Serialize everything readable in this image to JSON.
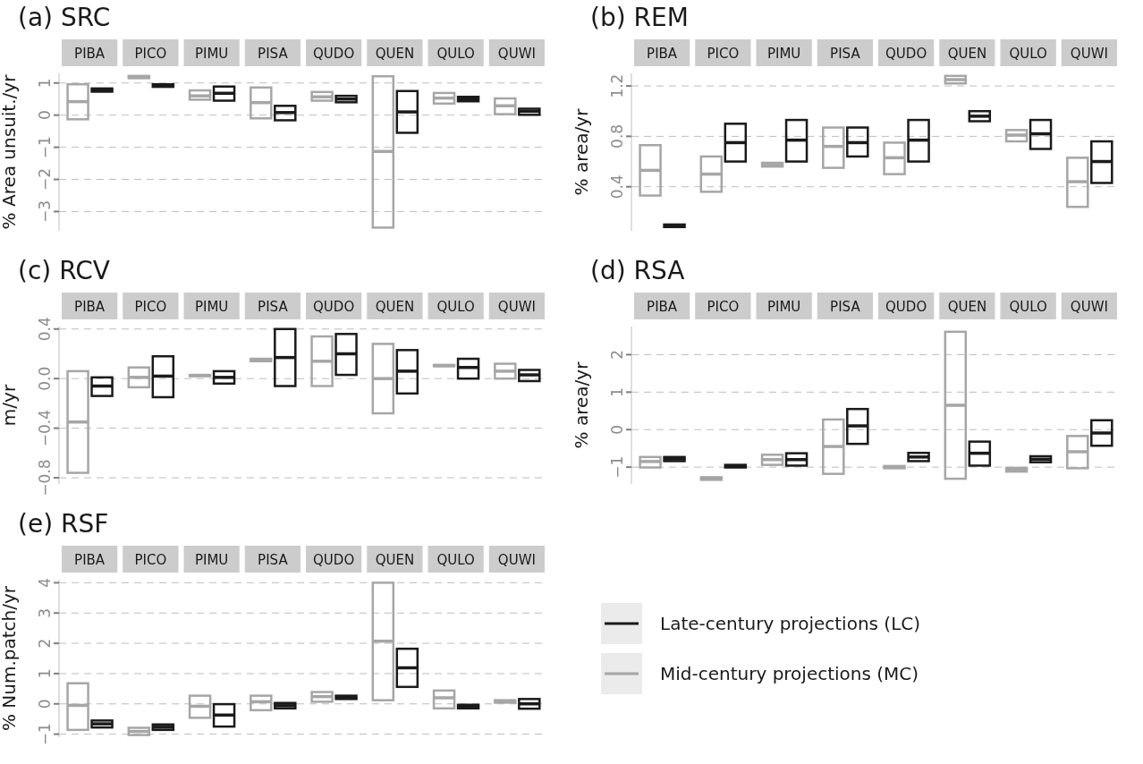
{
  "chart_data": [
    {
      "type": "box",
      "title": "(a) SRC",
      "ylabel": "% Area unsuit./yr",
      "categories": [
        "PIBA",
        "PICO",
        "PIMU",
        "PISA",
        "QUDO",
        "QUEN",
        "QULO",
        "QUWI"
      ],
      "ylim": [
        -3.6,
        1.3
      ],
      "yticks": [
        -3,
        -2,
        -1,
        0,
        1
      ],
      "grid": "y",
      "series": [
        {
          "color": "#a6a6a6",
          "boxes": [
            {
              "low": -0.13,
              "q1": -0.13,
              "median": 0.42,
              "q3": 0.96,
              "high": 0.96
            },
            {
              "low": 1.15,
              "q1": 1.15,
              "median": 1.18,
              "q3": 1.22,
              "high": 1.22
            },
            {
              "low": 0.48,
              "q1": 0.48,
              "median": 0.6,
              "q3": 0.77,
              "high": 0.77
            },
            {
              "low": -0.1,
              "q1": -0.1,
              "median": 0.39,
              "q3": 0.86,
              "high": 0.86
            },
            {
              "low": 0.45,
              "q1": 0.45,
              "median": 0.57,
              "q3": 0.72,
              "high": 0.72
            },
            {
              "low": -3.5,
              "q1": -3.5,
              "median": -1.13,
              "q3": 1.21,
              "high": 1.21
            },
            {
              "low": 0.36,
              "q1": 0.36,
              "median": 0.53,
              "q3": 0.69,
              "high": 0.69
            },
            {
              "low": 0.03,
              "q1": 0.03,
              "median": 0.29,
              "q3": 0.52,
              "high": 0.52
            }
          ]
        },
        {
          "color": "#1a1a1a",
          "boxes": [
            {
              "low": 0.73,
              "q1": 0.73,
              "median": 0.78,
              "q3": 0.83,
              "high": 0.83
            },
            {
              "low": 0.88,
              "q1": 0.88,
              "median": 0.92,
              "q3": 0.96,
              "high": 0.96
            },
            {
              "low": 0.45,
              "q1": 0.45,
              "median": 0.68,
              "q3": 0.89,
              "high": 0.89
            },
            {
              "low": -0.16,
              "q1": -0.16,
              "median": 0.08,
              "q3": 0.29,
              "high": 0.29
            },
            {
              "low": 0.4,
              "q1": 0.4,
              "median": 0.5,
              "q3": 0.6,
              "high": 0.6
            },
            {
              "low": -0.55,
              "q1": -0.55,
              "median": 0.1,
              "q3": 0.75,
              "high": 0.75
            },
            {
              "low": 0.43,
              "q1": 0.43,
              "median": 0.5,
              "q3": 0.57,
              "high": 0.57
            },
            {
              "low": 0.01,
              "q1": 0.01,
              "median": 0.12,
              "q3": 0.2,
              "high": 0.2
            }
          ]
        }
      ]
    },
    {
      "type": "box",
      "title": "(b) REM",
      "ylabel": "% area/yr",
      "categories": [
        "PIBA",
        "PICO",
        "PIMU",
        "PISA",
        "QUDO",
        "QUEN",
        "QULO",
        "QUWI"
      ],
      "ylim": [
        0.05,
        1.3
      ],
      "yticks": [
        0.4,
        0.8,
        1.2
      ],
      "grid": "y",
      "series": [
        {
          "color": "#a6a6a6",
          "boxes": [
            {
              "low": 0.33,
              "q1": 0.33,
              "median": 0.53,
              "q3": 0.73,
              "high": 0.73
            },
            {
              "low": 0.36,
              "q1": 0.36,
              "median": 0.5,
              "q3": 0.64,
              "high": 0.64
            },
            {
              "low": 0.56,
              "q1": 0.56,
              "median": 0.57,
              "q3": 0.59,
              "high": 0.59
            },
            {
              "low": 0.55,
              "q1": 0.55,
              "median": 0.72,
              "q3": 0.87,
              "high": 0.87
            },
            {
              "low": 0.5,
              "q1": 0.5,
              "median": 0.63,
              "q3": 0.75,
              "high": 0.75
            },
            {
              "low": 1.22,
              "q1": 1.22,
              "median": 1.25,
              "q3": 1.28,
              "high": 1.28
            },
            {
              "low": 0.76,
              "q1": 0.76,
              "median": 0.81,
              "q3": 0.85,
              "high": 0.85
            },
            {
              "low": 0.24,
              "q1": 0.24,
              "median": 0.44,
              "q3": 0.63,
              "high": 0.63
            }
          ]
        },
        {
          "color": "#1a1a1a",
          "boxes": [
            {
              "low": 0.08,
              "q1": 0.08,
              "median": 0.09,
              "q3": 0.1,
              "high": 0.1
            },
            {
              "low": 0.6,
              "q1": 0.6,
              "median": 0.75,
              "q3": 0.9,
              "high": 0.9
            },
            {
              "low": 0.6,
              "q1": 0.6,
              "median": 0.77,
              "q3": 0.93,
              "high": 0.93
            },
            {
              "low": 0.64,
              "q1": 0.64,
              "median": 0.75,
              "q3": 0.87,
              "high": 0.87
            },
            {
              "low": 0.6,
              "q1": 0.6,
              "median": 0.77,
              "q3": 0.93,
              "high": 0.93
            },
            {
              "low": 0.92,
              "q1": 0.92,
              "median": 0.96,
              "q3": 1.0,
              "high": 1.0
            },
            {
              "low": 0.7,
              "q1": 0.7,
              "median": 0.82,
              "q3": 0.93,
              "high": 0.93
            },
            {
              "low": 0.43,
              "q1": 0.43,
              "median": 0.6,
              "q3": 0.76,
              "high": 0.76
            }
          ]
        }
      ]
    },
    {
      "type": "box",
      "title": "(c) RCV",
      "ylabel": "m/yr",
      "categories": [
        "PIBA",
        "PICO",
        "PIMU",
        "PISA",
        "QUDO",
        "QUEN",
        "QULO",
        "QUWI"
      ],
      "ylim": [
        -0.85,
        0.42
      ],
      "yticks": [
        {
          "value": -0.8,
          "label": "−0.8"
        },
        {
          "value": -0.4,
          "label": "−0.4"
        },
        {
          "value": 0,
          "label": "0.0"
        },
        {
          "value": 0.4,
          "label": "0.4"
        }
      ],
      "grid": "y",
      "series": [
        {
          "color": "#a6a6a6",
          "boxes": [
            {
              "low": -0.76,
              "q1": -0.76,
              "median": -0.35,
              "q3": 0.06,
              "high": 0.06
            },
            {
              "low": -0.07,
              "q1": -0.07,
              "median": 0.01,
              "q3": 0.09,
              "high": 0.09
            },
            {
              "low": 0.02,
              "q1": 0.02,
              "median": 0.025,
              "q3": 0.03,
              "high": 0.03
            },
            {
              "low": 0.14,
              "q1": 0.14,
              "median": 0.15,
              "q3": 0.16,
              "high": 0.16
            },
            {
              "low": -0.06,
              "q1": -0.06,
              "median": 0.14,
              "q3": 0.34,
              "high": 0.34
            },
            {
              "low": -0.28,
              "q1": -0.28,
              "median": 0.0,
              "q3": 0.28,
              "high": 0.28
            },
            {
              "low": 0.1,
              "q1": 0.1,
              "median": 0.105,
              "q3": 0.11,
              "high": 0.11
            },
            {
              "low": 0.0,
              "q1": 0.0,
              "median": 0.06,
              "q3": 0.12,
              "high": 0.12
            }
          ]
        },
        {
          "color": "#1a1a1a",
          "boxes": [
            {
              "low": -0.14,
              "q1": -0.14,
              "median": -0.06,
              "q3": 0.01,
              "high": 0.01
            },
            {
              "low": -0.15,
              "q1": -0.15,
              "median": 0.02,
              "q3": 0.18,
              "high": 0.18
            },
            {
              "low": -0.04,
              "q1": -0.04,
              "median": 0.01,
              "q3": 0.06,
              "high": 0.06
            },
            {
              "low": -0.06,
              "q1": -0.06,
              "median": 0.17,
              "q3": 0.4,
              "high": 0.4
            },
            {
              "low": 0.03,
              "q1": 0.03,
              "median": 0.2,
              "q3": 0.36,
              "high": 0.36
            },
            {
              "low": -0.12,
              "q1": -0.12,
              "median": 0.06,
              "q3": 0.23,
              "high": 0.23
            },
            {
              "low": 0.0,
              "q1": 0.0,
              "median": 0.09,
              "q3": 0.16,
              "high": 0.16
            },
            {
              "low": -0.02,
              "q1": -0.02,
              "median": 0.03,
              "q3": 0.07,
              "high": 0.07
            }
          ]
        }
      ]
    },
    {
      "type": "box",
      "title": "(d) RSA",
      "ylabel": "% area/yr",
      "categories": [
        "PIBA",
        "PICO",
        "PIMU",
        "PISA",
        "QUDO",
        "QUEN",
        "QULO",
        "QUWI"
      ],
      "ylim": [
        -1.45,
        2.75
      ],
      "yticks": [
        -1,
        0,
        1,
        2
      ],
      "grid": "y",
      "series": [
        {
          "color": "#a6a6a6",
          "boxes": [
            {
              "low": -1.01,
              "q1": -1.01,
              "median": -0.85,
              "q3": -0.73,
              "high": -0.73
            },
            {
              "low": -1.34,
              "q1": -1.34,
              "median": -1.3,
              "q3": -1.27,
              "high": -1.27
            },
            {
              "low": -0.94,
              "q1": -0.94,
              "median": -0.8,
              "q3": -0.67,
              "high": -0.67
            },
            {
              "low": -1.18,
              "q1": -1.18,
              "median": -0.45,
              "q3": 0.27,
              "high": 0.27
            },
            {
              "low": -1.03,
              "q1": -1.03,
              "median": -1.0,
              "q3": -0.97,
              "high": -0.97
            },
            {
              "low": -1.31,
              "q1": -1.31,
              "median": 0.65,
              "q3": 2.61,
              "high": 2.61
            },
            {
              "low": -1.12,
              "q1": -1.12,
              "median": -1.07,
              "q3": -1.02,
              "high": -1.02
            },
            {
              "low": -1.03,
              "q1": -1.03,
              "median": -0.59,
              "q3": -0.17,
              "high": -0.17
            }
          ]
        },
        {
          "color": "#1a1a1a",
          "boxes": [
            {
              "low": -0.84,
              "q1": -0.84,
              "median": -0.78,
              "q3": -0.73,
              "high": -0.73
            },
            {
              "low": -1.01,
              "q1": -1.01,
              "median": -0.97,
              "q3": -0.94,
              "high": -0.94
            },
            {
              "low": -0.96,
              "q1": -0.96,
              "median": -0.8,
              "q3": -0.63,
              "high": -0.63
            },
            {
              "low": -0.38,
              "q1": -0.38,
              "median": 0.1,
              "q3": 0.55,
              "high": 0.55
            },
            {
              "low": -0.84,
              "q1": -0.84,
              "median": -0.73,
              "q3": -0.62,
              "high": -0.62
            },
            {
              "low": -0.96,
              "q1": -0.96,
              "median": -0.63,
              "q3": -0.32,
              "high": -0.32
            },
            {
              "low": -0.87,
              "q1": -0.87,
              "median": -0.79,
              "q3": -0.71,
              "high": -0.71
            },
            {
              "low": -0.43,
              "q1": -0.43,
              "median": -0.09,
              "q3": 0.25,
              "high": 0.25
            }
          ]
        }
      ]
    },
    {
      "type": "box",
      "title": "(e) RSF",
      "ylabel": "% Num.patch/yr",
      "categories": [
        "PIBA",
        "PICO",
        "PIMU",
        "PISA",
        "QUDO",
        "QUEN",
        "QULO",
        "QUWI"
      ],
      "ylim": [
        -1.1,
        4.1
      ],
      "yticks": [
        -1,
        0,
        1,
        2,
        3,
        4
      ],
      "grid": "y",
      "legend": "right",
      "series": [
        {
          "name": "Mid-century projections (MC)",
          "color": "#a6a6a6",
          "boxes": [
            {
              "low": -0.86,
              "q1": -0.86,
              "median": -0.05,
              "q3": 0.68,
              "high": 0.68
            },
            {
              "low": -1.03,
              "q1": -1.03,
              "median": -0.91,
              "q3": -0.79,
              "high": -0.79
            },
            {
              "low": -0.46,
              "q1": -0.46,
              "median": -0.08,
              "q3": 0.27,
              "high": 0.27
            },
            {
              "low": -0.21,
              "q1": -0.21,
              "median": 0.07,
              "q3": 0.27,
              "high": 0.27
            },
            {
              "low": 0.07,
              "q1": 0.07,
              "median": 0.24,
              "q3": 0.39,
              "high": 0.39
            },
            {
              "low": 0.12,
              "q1": 0.12,
              "median": 2.07,
              "q3": 4.0,
              "high": 4.0
            },
            {
              "low": -0.15,
              "q1": -0.15,
              "median": 0.2,
              "q3": 0.44,
              "high": 0.44
            },
            {
              "low": 0.04,
              "q1": 0.04,
              "median": 0.08,
              "q3": 0.12,
              "high": 0.12
            }
          ]
        },
        {
          "name": "Late-century projections (LC)",
          "color": "#1a1a1a",
          "boxes": [
            {
              "low": -0.78,
              "q1": -0.78,
              "median": -0.66,
              "q3": -0.55,
              "high": -0.55
            },
            {
              "low": -0.86,
              "q1": -0.86,
              "median": -0.77,
              "q3": -0.68,
              "high": -0.68
            },
            {
              "low": -0.75,
              "q1": -0.75,
              "median": -0.37,
              "q3": -0.01,
              "high": -0.01
            },
            {
              "low": -0.15,
              "q1": -0.15,
              "median": -0.06,
              "q3": 0.03,
              "high": 0.03
            },
            {
              "low": 0.16,
              "q1": 0.16,
              "median": 0.21,
              "q3": 0.27,
              "high": 0.27
            },
            {
              "low": 0.56,
              "q1": 0.56,
              "median": 1.19,
              "q3": 1.82,
              "high": 1.82
            },
            {
              "low": -0.15,
              "q1": -0.15,
              "median": -0.09,
              "q3": -0.03,
              "high": -0.03
            },
            {
              "low": -0.16,
              "q1": -0.16,
              "median": 0.0,
              "q3": 0.16,
              "high": 0.16
            }
          ]
        }
      ]
    }
  ]
}
